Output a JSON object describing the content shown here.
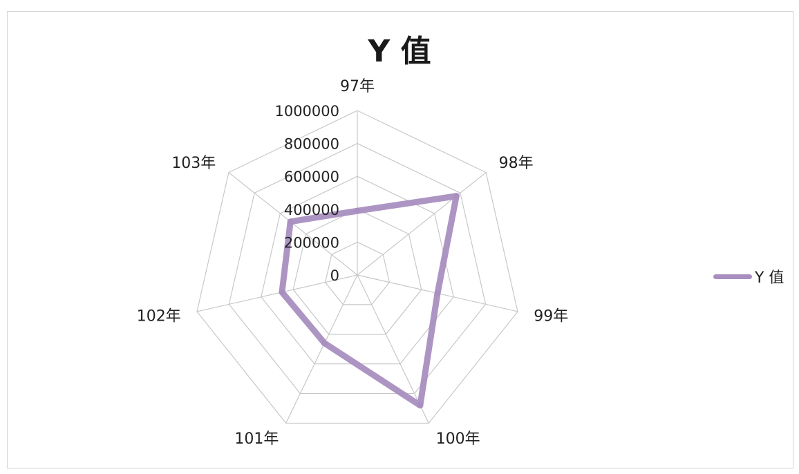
{
  "chart_data": {
    "type": "radar",
    "title": "Y 值",
    "categories": [
      "97年",
      "98年",
      "99年",
      "100年",
      "101年",
      "102年",
      "103年"
    ],
    "series": [
      {
        "name": "Y 值",
        "values": [
          390000,
          770000,
          500000,
          880000,
          460000,
          470000,
          520000
        ],
        "color": "#a98fc0"
      }
    ],
    "rlim": [
      0,
      1000000
    ],
    "ticks": [
      "0",
      "200000",
      "400000",
      "600000",
      "800000",
      "1000000"
    ],
    "tick_values": [
      0,
      200000,
      400000,
      600000,
      800000,
      1000000
    ],
    "grid": true,
    "grid_color": "#c8c8c8",
    "legend_position": "right"
  }
}
